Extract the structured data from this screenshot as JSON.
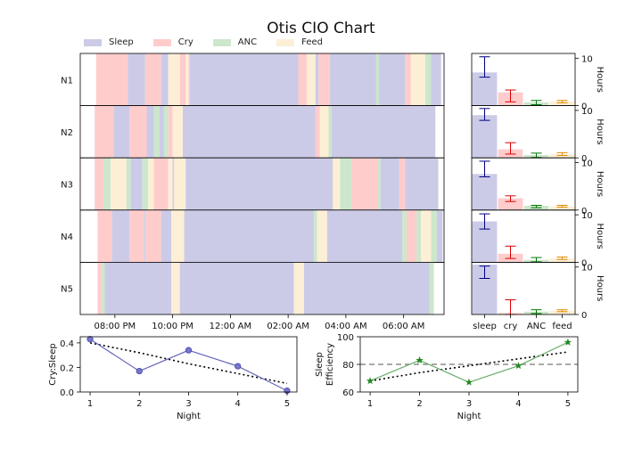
{
  "title": "Otis CIO Chart",
  "legend": [
    {
      "name": "Sleep",
      "color": "#cbcbe7"
    },
    {
      "name": "Cry",
      "color": "#ffcccc"
    },
    {
      "name": "ANC",
      "color": "#cce7cc"
    },
    {
      "name": "Feed",
      "color": "#fcefd6"
    }
  ],
  "chart_data": [
    {
      "type": "timeline",
      "x_ticks": [
        "08:00 PM",
        "10:00 PM",
        "12:00 AM",
        "02:00 AM",
        "04:00 AM",
        "06:00 AM"
      ],
      "x_tick_hours": [
        20,
        22,
        24,
        26,
        28,
        30
      ],
      "x_range_hours": [
        18.8,
        31.4
      ],
      "nights": [
        {
          "label": "N1",
          "segments": [
            [
              "Cry",
              19.35,
              20.45
            ],
            [
              "Sleep",
              20.45,
              21.05
            ],
            [
              "Cry",
              21.05,
              21.6
            ],
            [
              "Sleep",
              21.6,
              21.85
            ],
            [
              "Feed",
              21.85,
              22.25
            ],
            [
              "Cry",
              22.25,
              22.45
            ],
            [
              "Feed",
              22.45,
              22.55
            ],
            [
              "Cry",
              22.55,
              22.6
            ],
            [
              "Sleep",
              22.6,
              26.35
            ],
            [
              "Cry",
              26.35,
              26.65
            ],
            [
              "Feed",
              26.65,
              26.95
            ],
            [
              "Sleep",
              26.95,
              27.05
            ],
            [
              "Cry",
              27.05,
              27.45
            ],
            [
              "Sleep",
              27.45,
              29.05
            ],
            [
              "ANC",
              29.05,
              29.15
            ],
            [
              "Sleep",
              29.15,
              30.05
            ],
            [
              "Cry",
              30.05,
              30.25
            ],
            [
              "Feed",
              30.25,
              30.75
            ],
            [
              "ANC",
              30.75,
              30.95
            ],
            [
              "Sleep",
              30.95,
              31.3
            ]
          ]
        },
        {
          "label": "N2",
          "segments": [
            [
              "Cry",
              19.3,
              19.95
            ],
            [
              "Sleep",
              19.95,
              20.5
            ],
            [
              "Cry",
              20.5,
              21.1
            ],
            [
              "Sleep",
              21.1,
              21.35
            ],
            [
              "ANC",
              21.35,
              21.55
            ],
            [
              "Sleep",
              21.55,
              21.7
            ],
            [
              "ANC",
              21.7,
              21.85
            ],
            [
              "Cry",
              21.85,
              22.0
            ],
            [
              "Feed",
              22.0,
              22.35
            ],
            [
              "Sleep",
              22.35,
              26.95
            ],
            [
              "Cry",
              26.95,
              27.1
            ],
            [
              "Feed",
              27.1,
              27.4
            ],
            [
              "ANC",
              27.4,
              27.5
            ],
            [
              "Sleep",
              27.5,
              31.1
            ]
          ]
        },
        {
          "label": "N3",
          "segments": [
            [
              "Cry",
              19.3,
              19.6
            ],
            [
              "ANC",
              19.6,
              19.85
            ],
            [
              "Feed",
              19.85,
              20.4
            ],
            [
              "ANC",
              20.4,
              20.55
            ],
            [
              "Sleep",
              20.55,
              20.95
            ],
            [
              "ANC",
              20.95,
              21.15
            ],
            [
              "Feed",
              21.15,
              21.35
            ],
            [
              "Cry",
              21.35,
              21.85
            ],
            [
              "Feed",
              21.85,
              22.0
            ],
            [
              "Sleep",
              22.0,
              22.05
            ],
            [
              "Feed",
              22.05,
              22.45
            ],
            [
              "Sleep",
              22.45,
              27.55
            ],
            [
              "Feed",
              27.55,
              27.8
            ],
            [
              "ANC",
              27.8,
              28.2
            ],
            [
              "Cry",
              28.2,
              29.1
            ],
            [
              "ANC",
              29.1,
              29.2
            ],
            [
              "Sleep",
              29.2,
              29.85
            ],
            [
              "Cry",
              29.85,
              30.05
            ],
            [
              "Sleep",
              30.05,
              31.2
            ]
          ]
        },
        {
          "label": "N4",
          "segments": [
            [
              "Cry",
              19.4,
              19.9
            ],
            [
              "Sleep",
              19.9,
              20.5
            ],
            [
              "Cry",
              20.5,
              21.0
            ],
            [
              "Sleep",
              21.0,
              21.05
            ],
            [
              "Cry",
              21.05,
              21.6
            ],
            [
              "Sleep",
              21.6,
              21.95
            ],
            [
              "Feed",
              21.95,
              22.4
            ],
            [
              "Sleep",
              22.4,
              26.9
            ],
            [
              "ANC",
              26.9,
              27.0
            ],
            [
              "Feed",
              27.0,
              27.35
            ],
            [
              "Sleep",
              27.35,
              29.95
            ],
            [
              "ANC",
              29.95,
              30.1
            ],
            [
              "Cry",
              30.1,
              30.45
            ],
            [
              "ANC",
              30.45,
              30.6
            ],
            [
              "Feed",
              30.6,
              30.95
            ],
            [
              "ANC",
              30.95,
              31.15
            ],
            [
              "Sleep",
              31.15,
              31.35
            ]
          ]
        },
        {
          "label": "N5",
          "segments": [
            [
              "Cry",
              19.4,
              19.55
            ],
            [
              "ANC",
              19.55,
              19.65
            ],
            [
              "Sleep",
              19.65,
              21.95
            ],
            [
              "Feed",
              21.95,
              22.25
            ],
            [
              "Sleep",
              22.25,
              26.2
            ],
            [
              "Feed",
              26.2,
              26.55
            ],
            [
              "Sleep",
              26.55,
              30.9
            ],
            [
              "ANC",
              30.9,
              31.05
            ]
          ]
        }
      ]
    },
    {
      "type": "bar",
      "categories": [
        "sleep",
        "cry",
        "ANC",
        "feed"
      ],
      "ylabel": "Hours",
      "ylim": [
        0,
        11
      ],
      "y_ticks": [
        0,
        10
      ],
      "colors": [
        "#cbcbe7",
        "#ffcccc",
        "#cce7cc",
        "#fcefd6"
      ],
      "error_colors": [
        "#000080",
        "#dd0000",
        "#007700",
        "#e08a00"
      ],
      "nights": [
        {
          "values": [
            7.0,
            2.8,
            0.7,
            0.9
          ],
          "errors": [
            [
              6.0,
              10.3
            ],
            [
              0.8,
              3.3
            ],
            [
              0.2,
              1.1
            ],
            [
              0.6,
              1.1
            ]
          ]
        },
        {
          "values": [
            9.0,
            1.8,
            0.6,
            0.8
          ],
          "errors": [
            [
              7.9,
              10.4
            ],
            [
              0.8,
              3.2
            ],
            [
              0.1,
              1.0
            ],
            [
              0.5,
              1.1
            ]
          ]
        },
        {
          "values": [
            7.6,
            2.5,
            0.9,
            0.8
          ],
          "errors": [
            [
              7.0,
              10.3
            ],
            [
              1.8,
              3.0
            ],
            [
              0.5,
              1.0
            ],
            [
              0.6,
              1.0
            ]
          ]
        },
        {
          "values": [
            8.6,
            1.8,
            0.5,
            0.8
          ],
          "errors": [
            [
              7.0,
              10.2
            ],
            [
              0.8,
              3.4
            ],
            [
              0.1,
              1.0
            ],
            [
              0.6,
              1.1
            ]
          ]
        },
        {
          "values": [
            10.5,
            0.3,
            0.6,
            0.8
          ],
          "errors": [
            [
              7.6,
              10.2
            ],
            [
              0.0,
              3.1
            ],
            [
              0.2,
              1.0
            ],
            [
              0.6,
              1.0
            ]
          ]
        }
      ]
    },
    {
      "type": "line",
      "xlabel": "Night",
      "ylabel": "Cry:Sleep",
      "x": [
        1,
        2,
        3,
        4,
        5
      ],
      "values": [
        0.43,
        0.17,
        0.34,
        0.21,
        0.01
      ],
      "trend": [
        0.4,
        0.32,
        0.23,
        0.15,
        0.07
      ],
      "ylim": [
        0.0,
        0.45
      ],
      "y_ticks": [
        "0.0",
        "0.2",
        "0.4"
      ],
      "y_tick_vals": [
        0.0,
        0.2,
        0.4
      ],
      "color": "#6666bb"
    },
    {
      "type": "line",
      "xlabel": "Night",
      "ylabel": "Sleep\nEfficiency",
      "x": [
        1,
        2,
        3,
        4,
        5
      ],
      "values": [
        68,
        83,
        67,
        79,
        96
      ],
      "trend": [
        68,
        74,
        79,
        84,
        89
      ],
      "ylim": [
        60,
        100
      ],
      "y_ticks": [
        "60",
        "80",
        "100"
      ],
      "y_tick_vals": [
        60,
        80,
        100
      ],
      "reference": 80,
      "color": "#66aa66"
    }
  ]
}
